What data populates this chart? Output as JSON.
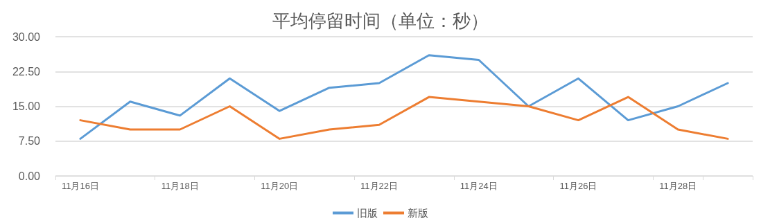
{
  "chart_data": {
    "type": "line",
    "title": "平均停留时间（单位：秒）",
    "categories": [
      "11月16日",
      null,
      "11月18日",
      null,
      "11月20日",
      null,
      "11月22日",
      null,
      "11月24日",
      null,
      "11月26日",
      null,
      "11月28日",
      null
    ],
    "series": [
      {
        "name": "旧版",
        "color": "#5b9bd5",
        "values": [
          8,
          16,
          13,
          21,
          14,
          19,
          20,
          26,
          25,
          15,
          21,
          12,
          15,
          20
        ]
      },
      {
        "name": "新版",
        "color": "#ed7d31",
        "values": [
          12,
          10,
          10,
          15,
          8,
          10,
          11,
          17,
          16,
          15,
          12,
          17,
          10,
          8
        ]
      }
    ],
    "ylim": [
      0,
      30
    ],
    "yticks": [
      {
        "value": 0,
        "label": "0.00"
      },
      {
        "value": 7.5,
        "label": "7.50"
      },
      {
        "value": 15,
        "label": "15.00"
      },
      {
        "value": 22.5,
        "label": "22.50"
      },
      {
        "value": 30,
        "label": "30.00"
      }
    ],
    "grid": "y",
    "legend": "bottom",
    "marker": "none",
    "line_style": "solid"
  }
}
